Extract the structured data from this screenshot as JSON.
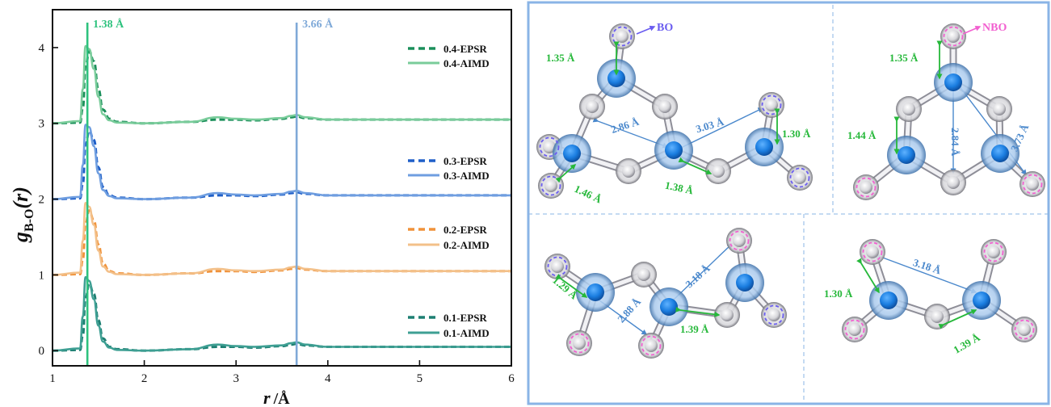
{
  "chart_data": {
    "type": "line",
    "xlabel_main": "r",
    "xlabel_unit": "/Å",
    "ylabel_main": "g",
    "ylabel_sub": "B-O",
    "ylabel_arg": "(r)",
    "xlim": [
      1,
      6
    ],
    "ylim": [
      -0.2,
      4.5
    ],
    "xticks": [
      1,
      2,
      3,
      4,
      5,
      6
    ],
    "yticks": [
      0,
      1,
      2,
      3,
      4
    ],
    "grid": false,
    "legend_position": "right",
    "vlines": [
      {
        "x": 1.38,
        "label": "1.38 Å",
        "color": "#2ec27e"
      },
      {
        "x": 3.66,
        "label": "3.66 Å",
        "color": "#7fa9d8"
      }
    ],
    "x": [
      1.0,
      1.3,
      1.33,
      1.36,
      1.4,
      1.45,
      1.5,
      1.55,
      1.62,
      1.7,
      2.0,
      2.5,
      2.8,
      3.0,
      3.2,
      3.5,
      3.6,
      3.66,
      3.75,
      4.0,
      4.5,
      5.0,
      5.5,
      6.0
    ],
    "series": [
      {
        "name": "0.4-EPSR",
        "style": "dashed",
        "color": "#1a8f5a",
        "offset": 3,
        "values": [
          0,
          0.01,
          0.2,
          0.75,
          0.95,
          0.82,
          0.45,
          0.18,
          0.06,
          0.02,
          0,
          0.02,
          0.05,
          0.05,
          0.04,
          0.06,
          0.08,
          0.09,
          0.07,
          0.05,
          0.05,
          0.05,
          0.05,
          0.05
        ]
      },
      {
        "name": "0.4-AIMD",
        "style": "solid",
        "color": "#79cc9a",
        "offset": 3,
        "values": [
          0,
          0.03,
          0.45,
          1.02,
          0.98,
          0.72,
          0.35,
          0.12,
          0.04,
          0.01,
          0,
          0.02,
          0.08,
          0.06,
          0.05,
          0.07,
          0.1,
          0.11,
          0.08,
          0.05,
          0.05,
          0.05,
          0.05,
          0.05
        ]
      },
      {
        "name": "0.3-EPSR",
        "style": "dashed",
        "color": "#1f5fc8",
        "offset": 2,
        "values": [
          0,
          0.01,
          0.2,
          0.72,
          0.9,
          0.78,
          0.42,
          0.16,
          0.05,
          0.02,
          0,
          0.02,
          0.05,
          0.05,
          0.04,
          0.06,
          0.08,
          0.09,
          0.07,
          0.05,
          0.05,
          0.05,
          0.05,
          0.05
        ]
      },
      {
        "name": "0.3-AIMD",
        "style": "solid",
        "color": "#6f9ee0",
        "offset": 2,
        "values": [
          0,
          0.03,
          0.45,
          0.98,
          0.95,
          0.7,
          0.34,
          0.12,
          0.04,
          0.01,
          0,
          0.02,
          0.08,
          0.06,
          0.05,
          0.07,
          0.1,
          0.11,
          0.08,
          0.05,
          0.05,
          0.05,
          0.05,
          0.05
        ]
      },
      {
        "name": "0.2-EPSR",
        "style": "dashed",
        "color": "#f0923a",
        "offset": 1,
        "values": [
          0,
          0.01,
          0.2,
          0.68,
          0.85,
          0.72,
          0.4,
          0.15,
          0.05,
          0.02,
          0,
          0.02,
          0.05,
          0.05,
          0.04,
          0.06,
          0.08,
          0.09,
          0.07,
          0.05,
          0.05,
          0.05,
          0.05,
          0.05
        ]
      },
      {
        "name": "0.2-AIMD",
        "style": "solid",
        "color": "#f3c089",
        "offset": 1,
        "values": [
          0,
          0.03,
          0.45,
          0.95,
          0.9,
          0.66,
          0.32,
          0.11,
          0.04,
          0.01,
          0,
          0.02,
          0.08,
          0.06,
          0.05,
          0.07,
          0.1,
          0.11,
          0.08,
          0.05,
          0.05,
          0.05,
          0.05,
          0.05
        ]
      },
      {
        "name": "0.1-EPSR",
        "style": "dashed",
        "color": "#1d7f72",
        "offset": 0,
        "values": [
          0,
          0.01,
          0.2,
          0.7,
          0.88,
          0.75,
          0.4,
          0.16,
          0.05,
          0.02,
          0,
          0.02,
          0.05,
          0.05,
          0.04,
          0.06,
          0.08,
          0.09,
          0.07,
          0.05,
          0.05,
          0.05,
          0.05,
          0.05
        ]
      },
      {
        "name": "0.1-AIMD",
        "style": "solid",
        "color": "#3e9f93",
        "offset": 0,
        "values": [
          0,
          0.03,
          0.45,
          0.97,
          0.92,
          0.68,
          0.33,
          0.12,
          0.04,
          0.01,
          0,
          0.02,
          0.08,
          0.06,
          0.05,
          0.07,
          0.1,
          0.11,
          0.08,
          0.05,
          0.05,
          0.05,
          0.05,
          0.05
        ]
      }
    ]
  },
  "structures": {
    "bo_label": "BO",
    "nbo_label": "NBO",
    "top_left": [
      "1.35 Å",
      "2.86 Å",
      "3.03 Å",
      "1.30 Å",
      "1.46 Å",
      "1.38 Å"
    ],
    "top_right": [
      "1.35 Å",
      "1.44 Å",
      "2.84 Å",
      "3.73 Å"
    ],
    "bottom_left": [
      "3.18 Å",
      "1.29 Å",
      "2.88 Å",
      "1.39 Å"
    ],
    "bottom_right": [
      "3.18 Å",
      "1.30 Å",
      "1.39 Å"
    ],
    "colors": {
      "boron": "#1a7de0",
      "oxygen": "#c8c8cc",
      "bo_ring": "#6a5cf0",
      "nbo_ring": "#f25fd0",
      "bond_short": "#26b83a",
      "distance": "#4a88cc",
      "frame": "#8ab4e6"
    }
  }
}
